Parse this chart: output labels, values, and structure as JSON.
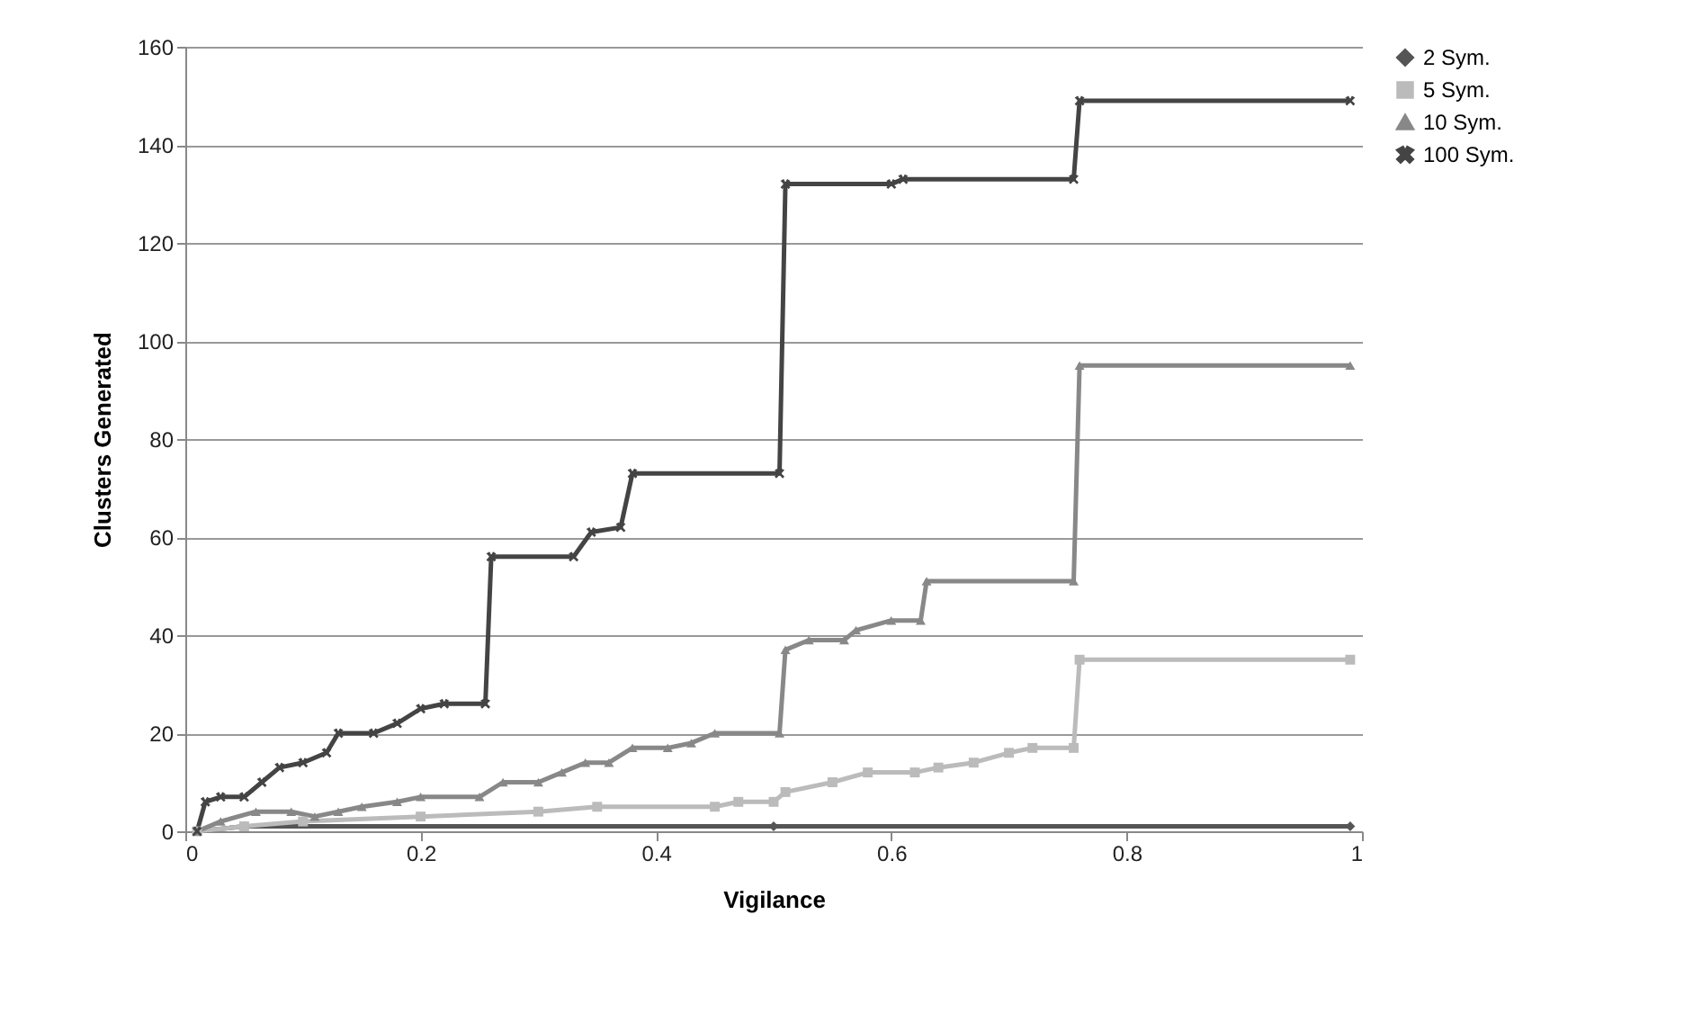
{
  "chart_data": {
    "type": "line",
    "xlabel": "Vigilance",
    "ylabel": "Clusters Generated",
    "xlim": [
      0,
      1
    ],
    "xticks": [
      0,
      0.2,
      0.4,
      0.6,
      0.8,
      1
    ],
    "ylim": [
      0,
      160
    ],
    "yticks": [
      0,
      20,
      40,
      60,
      80,
      100,
      120,
      140,
      160
    ],
    "grid": "y",
    "legend": "right",
    "series": [
      {
        "name": "2 Sym.",
        "color": "#555555",
        "marker": "diamond",
        "x": [
          0.01,
          0.05,
          0.5,
          0.99
        ],
        "values": [
          0,
          1,
          1,
          1
        ]
      },
      {
        "name": "5 Sym.",
        "color": "#bbbbbb",
        "marker": "square",
        "x": [
          0.01,
          0.05,
          0.1,
          0.2,
          0.3,
          0.35,
          0.45,
          0.47,
          0.5,
          0.51,
          0.55,
          0.58,
          0.62,
          0.64,
          0.67,
          0.7,
          0.72,
          0.755,
          0.76,
          0.99
        ],
        "values": [
          0,
          1,
          2,
          3,
          4,
          5,
          5,
          6,
          6,
          8,
          10,
          12,
          12,
          13,
          14,
          16,
          17,
          17,
          35,
          35
        ]
      },
      {
        "name": "10 Sym.",
        "color": "#888888",
        "marker": "triangle",
        "x": [
          0.01,
          0.03,
          0.06,
          0.09,
          0.11,
          0.13,
          0.15,
          0.18,
          0.2,
          0.25,
          0.27,
          0.3,
          0.32,
          0.34,
          0.36,
          0.38,
          0.41,
          0.43,
          0.45,
          0.505,
          0.51,
          0.53,
          0.56,
          0.57,
          0.6,
          0.625,
          0.63,
          0.755,
          0.76,
          0.99
        ],
        "values": [
          0,
          2,
          4,
          4,
          3,
          4,
          5,
          6,
          7,
          7,
          10,
          10,
          12,
          14,
          14,
          17,
          17,
          18,
          20,
          20,
          37,
          39,
          39,
          41,
          43,
          43,
          51,
          51,
          95,
          95
        ]
      },
      {
        "name": "100 Sym.",
        "color": "#444444",
        "marker": "cross",
        "x": [
          0.01,
          0.017,
          0.03,
          0.05,
          0.065,
          0.08,
          0.1,
          0.12,
          0.13,
          0.16,
          0.18,
          0.2,
          0.22,
          0.255,
          0.26,
          0.33,
          0.345,
          0.37,
          0.38,
          0.505,
          0.51,
          0.6,
          0.61,
          0.755,
          0.76,
          0.99
        ],
        "values": [
          0,
          6,
          7,
          7,
          10,
          13,
          14,
          16,
          20,
          20,
          22,
          25,
          26,
          26,
          56,
          56,
          61,
          62,
          73,
          73,
          132,
          132,
          133,
          133,
          149,
          149
        ]
      }
    ]
  }
}
